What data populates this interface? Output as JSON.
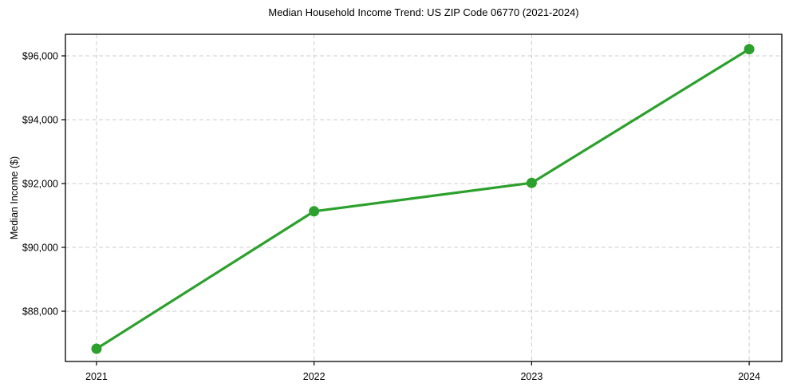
{
  "chart_data": {
    "type": "line",
    "title": "Median Household Income Trend: US ZIP Code 06770 (2021-2024)",
    "xlabel": "",
    "ylabel": "Median Income ($)",
    "x": [
      2021,
      2022,
      2023,
      2024
    ],
    "xtick_labels": [
      "2021",
      "2022",
      "2023",
      "2024"
    ],
    "series": [
      {
        "name": "Median Household Income",
        "values": [
          86825,
          91130,
          92020,
          96210
        ],
        "color": "#2ca02c",
        "marker": "circle"
      }
    ],
    "yticks": [
      88000,
      90000,
      92000,
      94000,
      96000
    ],
    "ytick_labels": [
      "$88,000",
      "$90,000",
      "$92,000",
      "$94,000",
      "$96,000"
    ],
    "xlim": [
      2020.857,
      2024.15
    ],
    "ylim": [
      86425,
      96675
    ],
    "grid": true,
    "legend": false,
    "grid_color": "#cccccc",
    "spine_color": "#000000",
    "text_color": "#000000",
    "background": "#ffffff"
  }
}
